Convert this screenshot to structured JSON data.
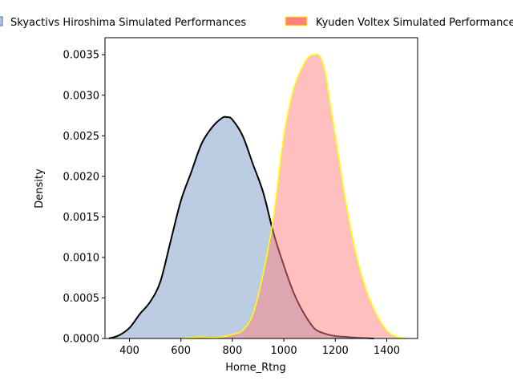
{
  "chart_data": {
    "type": "area",
    "xlabel": "Home_Rtng",
    "ylabel": "Density",
    "xlim": [
      305,
      1520
    ],
    "ylim": [
      0,
      0.00371
    ],
    "grid": false,
    "legend_position": "top (above plot)",
    "xticks": [
      {
        "v": 400,
        "label": "400"
      },
      {
        "v": 600,
        "label": "600"
      },
      {
        "v": 800,
        "label": "800"
      },
      {
        "v": 1000,
        "label": "1000"
      },
      {
        "v": 1200,
        "label": "1200"
      },
      {
        "v": 1400,
        "label": "1400"
      }
    ],
    "yticks": [
      {
        "v": 0,
        "label": "0.0000"
      },
      {
        "v": 0.0005,
        "label": "0.0005"
      },
      {
        "v": 0.001,
        "label": "0.0010"
      },
      {
        "v": 0.0015,
        "label": "0.0015"
      },
      {
        "v": 0.002,
        "label": "0.0020"
      },
      {
        "v": 0.0025,
        "label": "0.0025"
      },
      {
        "v": 0.003,
        "label": "0.0030"
      },
      {
        "v": 0.0035,
        "label": "0.0035"
      }
    ],
    "series": [
      {
        "name": "Skyactivs Hiroshima Simulated Performances",
        "fill": "#b0c4de",
        "line": "#000000",
        "x": [
          320,
          360,
          400,
          440,
          480,
          520,
          560,
          600,
          640,
          680,
          720,
          760,
          780,
          800,
          840,
          880,
          920,
          960,
          1000,
          1040,
          1080,
          1120,
          1160,
          1200,
          1240,
          1280,
          1320,
          1350
        ],
        "y": [
          0.0,
          4e-05,
          0.00013,
          0.0003,
          0.00045,
          0.0007,
          0.0012,
          0.0017,
          0.00205,
          0.0024,
          0.0026,
          0.00272,
          0.00273,
          0.0027,
          0.0025,
          0.00215,
          0.0018,
          0.0013,
          0.0009,
          0.00055,
          0.0003,
          0.00012,
          6e-05,
          3e-05,
          2e-05,
          1e-05,
          5e-06,
          0.0
        ]
      },
      {
        "name": "Kyuden Voltex Simulated Performances",
        "fill": "#ff7f7f",
        "line": "#ffff00",
        "x": [
          600,
          640,
          680,
          720,
          760,
          800,
          840,
          880,
          920,
          960,
          1000,
          1040,
          1080,
          1100,
          1120,
          1140,
          1160,
          1180,
          1200,
          1240,
          1280,
          1320,
          1360,
          1400,
          1440,
          1480
        ],
        "y": [
          0.0,
          1e-05,
          2e-05,
          1e-05,
          2e-05,
          5e-05,
          0.0001,
          0.0003,
          0.0008,
          0.0015,
          0.0025,
          0.0031,
          0.0034,
          0.00348,
          0.0035,
          0.00348,
          0.0033,
          0.0029,
          0.0025,
          0.0017,
          0.00105,
          0.0006,
          0.0003,
          0.0001,
          2e-05,
          0.0
        ]
      }
    ]
  }
}
